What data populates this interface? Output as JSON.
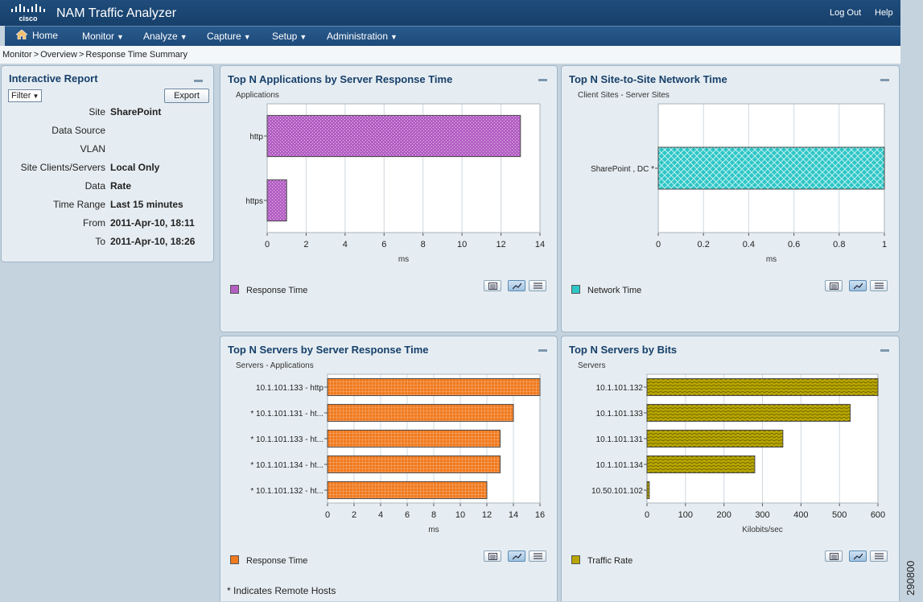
{
  "app": {
    "brand": "cisco",
    "title": "NAM Traffic Analyzer",
    "logout": "Log Out",
    "help": "Help"
  },
  "nav": [
    {
      "label": "Home",
      "icon": "home-icon"
    },
    {
      "label": "Monitor"
    },
    {
      "label": "Analyze"
    },
    {
      "label": "Capture"
    },
    {
      "label": "Setup"
    },
    {
      "label": "Administration"
    }
  ],
  "breadcrumb": [
    "Monitor",
    "Overview",
    "Response Time Summary"
  ],
  "breadcrumb_sep": ">",
  "report": {
    "title": "Interactive Report",
    "filter": "Filter",
    "export": "Export",
    "rows": [
      {
        "label": "Site",
        "value": "SharePoint"
      },
      {
        "label": "Data Source",
        "value": ""
      },
      {
        "label": "VLAN",
        "value": ""
      },
      {
        "label": "Site Clients/Servers",
        "value": "Local Only"
      },
      {
        "label": "Data",
        "value": "Rate"
      },
      {
        "label": "Time Range",
        "value": "Last 15 minutes"
      },
      {
        "label": "From",
        "value": "2011-Apr-10, 18:11"
      },
      {
        "label": "To",
        "value": "2011-Apr-10, 18:26"
      }
    ]
  },
  "colors": {
    "purple": "#b35fc4",
    "teal": "#2ec6c6",
    "orange": "#f07a1e",
    "olive": "#b8a600"
  },
  "chart_data": [
    {
      "type": "bar",
      "title": "Top N Applications by Server Response Time",
      "ylabel": "Applications",
      "xlabel": "ms",
      "categories": [
        "http",
        "https"
      ],
      "values": [
        13,
        1
      ],
      "xlim": [
        0,
        14
      ],
      "ticks": [
        "0",
        "2",
        "4",
        "6",
        "8",
        "10",
        "12",
        "14"
      ],
      "legend": "Response Time",
      "orientation": "horizontal",
      "grid": true
    },
    {
      "type": "bar",
      "title": "Top N Site-to-Site Network Time",
      "ylabel": "Client Sites - Server Sites",
      "xlabel": "ms",
      "categories": [
        "SharePoint , DC *"
      ],
      "values": [
        1
      ],
      "xlim": [
        0,
        1
      ],
      "ticks": [
        "0",
        "0.2",
        "0.4",
        "0.6",
        "0.8",
        "1"
      ],
      "legend": "Network Time",
      "orientation": "horizontal",
      "grid": true
    },
    {
      "type": "bar",
      "title": "Top N Servers by Server Response Time",
      "ylabel": "Servers - Applications",
      "xlabel": "ms",
      "categories": [
        "10.1.101.133 - http",
        "* 10.1.101.131 - ht...",
        "* 10.1.101.133 - ht...",
        "* 10.1.101.134 - ht...",
        "* 10.1.101.132 - ht..."
      ],
      "values": [
        16,
        14,
        13,
        13,
        12
      ],
      "xlim": [
        0,
        16
      ],
      "ticks": [
        "0",
        "2",
        "4",
        "6",
        "8",
        "10",
        "12",
        "14",
        "16"
      ],
      "legend": "Response Time",
      "orientation": "horizontal",
      "grid": true
    },
    {
      "type": "bar",
      "title": "Top N Servers by Bits",
      "ylabel": "Servers",
      "xlabel": "Kilobits/sec",
      "categories": [
        "10.1.101.132",
        "10.1.101.133",
        "10.1.101.131",
        "10.1.101.134",
        "10.50.101.102"
      ],
      "values": [
        600,
        528,
        353,
        280,
        6
      ],
      "xlim": [
        0,
        600
      ],
      "ticks": [
        "0",
        "100",
        "200",
        "300",
        "400",
        "500",
        "600"
      ],
      "legend": "Traffic Rate",
      "orientation": "horizontal",
      "grid": true
    }
  ],
  "footnote": "* Indicates Remote Hosts",
  "figure_id": "290800"
}
